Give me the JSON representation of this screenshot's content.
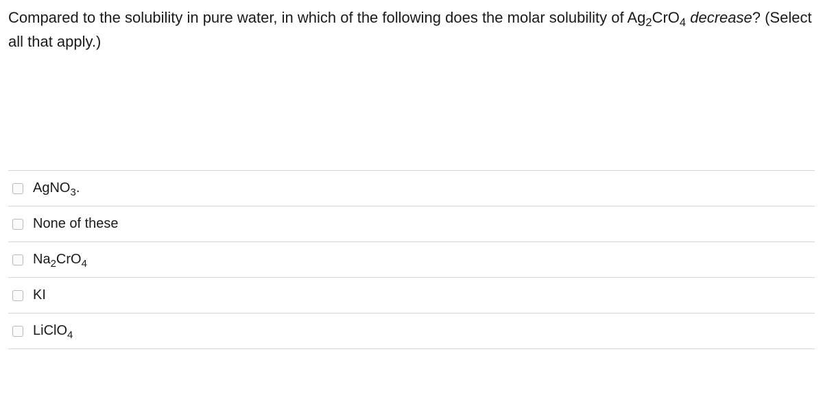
{
  "question": {
    "prefix": "Compared to the solubility in pure water, in which of the following does the molar solubility of Ag",
    "sub1": "2",
    "mid1": "CrO",
    "sub2": "4",
    "italic": " decrease",
    "suffix": "? (Select all that apply.)"
  },
  "options": [
    {
      "html": "AgNO<span class=\"sub\">3</span>."
    },
    {
      "html": "None of these"
    },
    {
      "html": "Na<span class=\"sub\">2</span>CrO<span class=\"sub\">4</span>"
    },
    {
      "html": "KI"
    },
    {
      "html": "LiClO<span class=\"sub\">4</span>"
    }
  ]
}
